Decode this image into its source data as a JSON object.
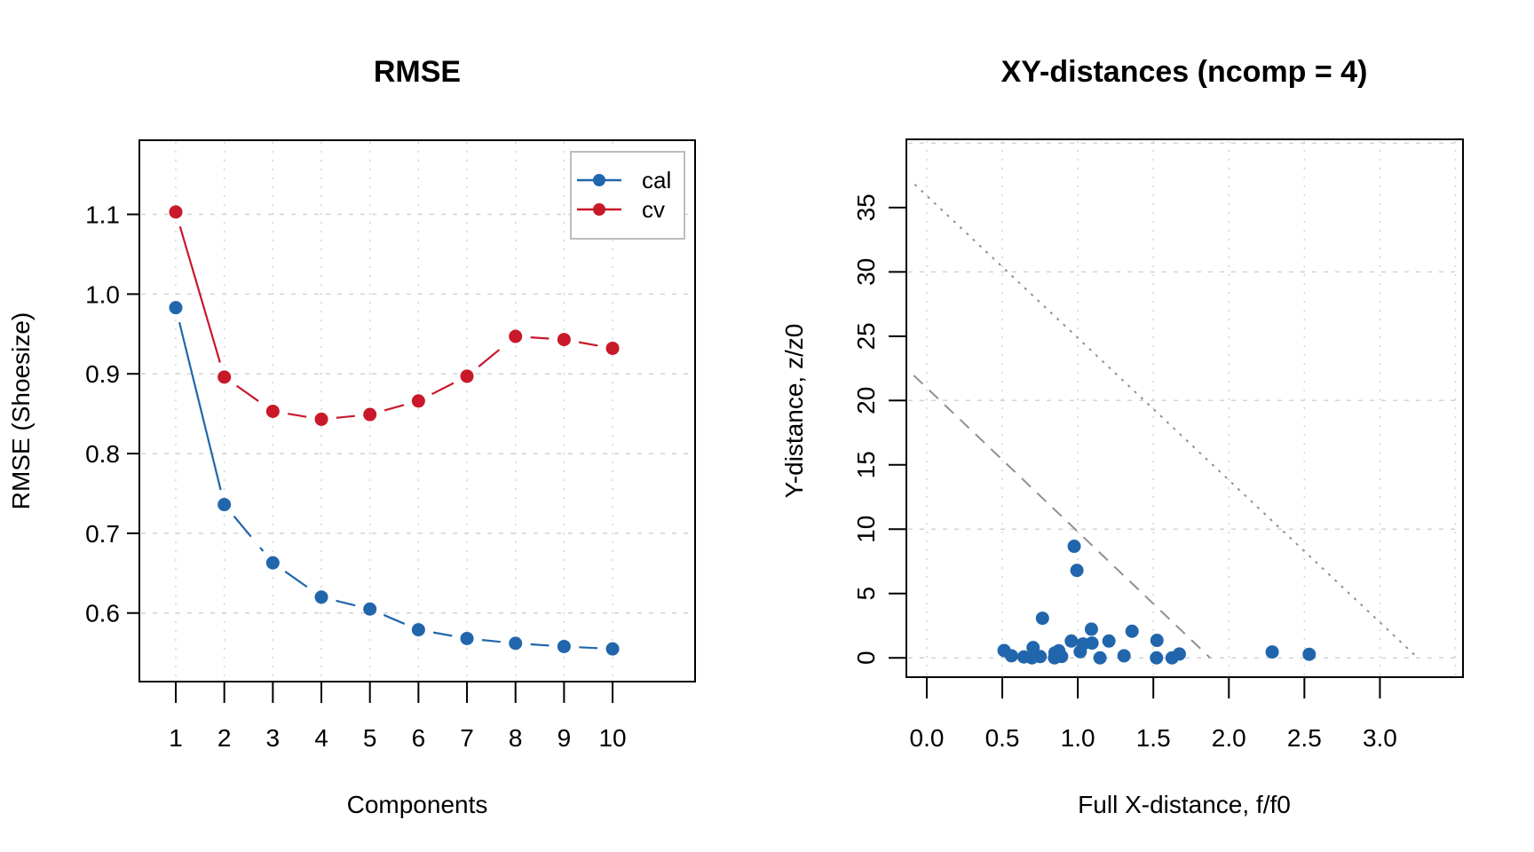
{
  "chart_data": [
    {
      "type": "line",
      "title": "RMSE",
      "xlabel": "Components",
      "ylabel": "RMSE (Shoesize)",
      "x": [
        1,
        2,
        3,
        4,
        5,
        6,
        7,
        8,
        9,
        10
      ],
      "x_ticks": [
        "1",
        "2",
        "3",
        "4",
        "5",
        "6",
        "7",
        "8",
        "9",
        "10"
      ],
      "y_ticks": [
        "0.6",
        "0.7",
        "0.8",
        "0.9",
        "1.0",
        "1.1"
      ],
      "xlim": [
        0.25,
        11.7
      ],
      "ylim": [
        0.514,
        1.193
      ],
      "grid": true,
      "legend": {
        "position": "top-right",
        "entries": [
          "cal",
          "cv"
        ]
      },
      "series": [
        {
          "name": "cal",
          "color": "#2166ac",
          "values": [
            0.983,
            0.736,
            0.663,
            0.62,
            0.605,
            0.579,
            0.568,
            0.562,
            0.558,
            0.555
          ]
        },
        {
          "name": "cv",
          "color": "#c8182a",
          "values": [
            1.103,
            0.896,
            0.853,
            0.843,
            0.849,
            0.866,
            0.897,
            0.947,
            0.943,
            0.932
          ]
        }
      ]
    },
    {
      "type": "scatter",
      "title": "XY-distances (ncomp = 4)",
      "xlabel": "Full X-distance, f/f0",
      "ylabel": "Y-distance, z/z0",
      "x_ticks": [
        "0.0",
        "0.5",
        "1.0",
        "1.5",
        "2.0",
        "2.5",
        "3.0"
      ],
      "y_ticks": [
        "0",
        "5",
        "10",
        "15",
        "20",
        "25",
        "30",
        "35"
      ],
      "xlim": [
        -0.135,
        3.55
      ],
      "ylim": [
        -1.5,
        40.3
      ],
      "grid": true,
      "point_color": "#2166ac",
      "points": [
        [
          0.976,
          8.67
        ],
        [
          0.994,
          6.8
        ],
        [
          0.766,
          3.08
        ],
        [
          1.09,
          2.23
        ],
        [
          1.359,
          2.07
        ],
        [
          1.524,
          1.36
        ],
        [
          1.206,
          1.31
        ],
        [
          0.957,
          1.31
        ],
        [
          1.094,
          1.15
        ],
        [
          1.035,
          1.08
        ],
        [
          0.512,
          0.57
        ],
        [
          0.704,
          0.8
        ],
        [
          0.561,
          0.16
        ],
        [
          0.643,
          0.07
        ],
        [
          0.696,
          0.0
        ],
        [
          0.751,
          0.1
        ],
        [
          0.849,
          0.39
        ],
        [
          0.874,
          0.55
        ],
        [
          0.846,
          0.0
        ],
        [
          0.893,
          0.11
        ],
        [
          1.016,
          0.48
        ],
        [
          1.147,
          0.0
        ],
        [
          1.306,
          0.16
        ],
        [
          1.521,
          0.0
        ],
        [
          1.624,
          0.0
        ],
        [
          1.672,
          0.3
        ],
        [
          2.287,
          0.46
        ],
        [
          2.532,
          0.28
        ]
      ],
      "limit_lines": [
        {
          "name": "extreme-limit",
          "style": "dashed",
          "color": "#909090",
          "from": [
            -0.086,
            21.95
          ],
          "to": [
            1.876,
            0
          ]
        },
        {
          "name": "outlier-limit",
          "style": "dotted",
          "color": "#909090",
          "from": [
            -0.08,
            36.8
          ],
          "to": [
            3.25,
            0
          ]
        }
      ]
    }
  ]
}
